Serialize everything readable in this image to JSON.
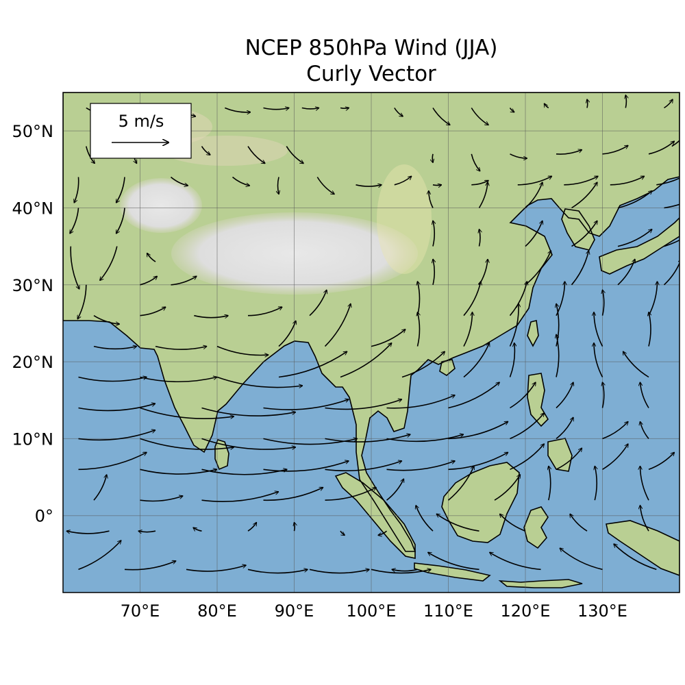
{
  "figure": {
    "title_line1": "NCEP 850hPa Wind (JJA)",
    "title_line2": "Curly Vector"
  },
  "map": {
    "projection": "PlateCarree",
    "lon_range": [
      60,
      140
    ],
    "lat_range": [
      -10,
      55
    ],
    "background": "shaded relief",
    "gridlines": true,
    "coastlines": true
  },
  "axes": {
    "x_ticks": [
      {
        "value": 70,
        "label": "70°E"
      },
      {
        "value": 80,
        "label": "80°E"
      },
      {
        "value": 90,
        "label": "90°E"
      },
      {
        "value": 100,
        "label": "100°E"
      },
      {
        "value": 110,
        "label": "110°E"
      },
      {
        "value": 120,
        "label": "120°E"
      },
      {
        "value": 130,
        "label": "130°E"
      }
    ],
    "y_ticks": [
      {
        "value": 50,
        "label": "50°N"
      },
      {
        "value": 40,
        "label": "40°N"
      },
      {
        "value": 30,
        "label": "30°N"
      },
      {
        "value": 20,
        "label": "20°N"
      },
      {
        "value": 10,
        "label": "10°N"
      },
      {
        "value": 0,
        "label": "0°"
      }
    ]
  },
  "reference_key": {
    "label": "5 m/s",
    "speed": 5,
    "placement": "upper-left"
  },
  "colors": {
    "ocean": "#7eaed3",
    "land_low": "#b9cf93",
    "land_high": "#e2d8a6",
    "plateau": "#e4e4e4",
    "vectors": "#000000",
    "gridlines": "#555555"
  },
  "chart_data": {
    "type": "curly vector",
    "title": "NCEP 850hPa Wind (JJA)",
    "subtitle": "Curly Vector",
    "xlim": [
      60,
      140
    ],
    "ylim": [
      -10,
      55
    ],
    "grid": true,
    "vectors": [
      {
        "lon": 62,
        "lat": -7,
        "u": 5,
        "v": 3.4
      },
      {
        "lon": 68,
        "lat": -7,
        "u": 6,
        "v": 1
      },
      {
        "lon": 76,
        "lat": -7,
        "u": 7,
        "v": 0.5
      },
      {
        "lon": 84,
        "lat": -7,
        "u": 7,
        "v": 0
      },
      {
        "lon": 92,
        "lat": -7,
        "u": 7,
        "v": 0
      },
      {
        "lon": 100,
        "lat": -7,
        "u": 7,
        "v": 0
      },
      {
        "lon": 106,
        "lat": -7,
        "u": -3,
        "v": 0
      },
      {
        "lon": 114,
        "lat": -7,
        "u": -6,
        "v": 2
      },
      {
        "lon": 122,
        "lat": -7,
        "u": -6,
        "v": 2
      },
      {
        "lon": 130,
        "lat": -7,
        "u": -5,
        "v": 2.5
      },
      {
        "lon": 137,
        "lat": -7,
        "u": -5,
        "v": 3
      },
      {
        "lon": 66,
        "lat": -2,
        "u": -5,
        "v": 0
      },
      {
        "lon": 72,
        "lat": -2,
        "u": -2,
        "v": 0
      },
      {
        "lon": 78,
        "lat": -2,
        "u": -1,
        "v": 0.4
      },
      {
        "lon": 84,
        "lat": -2,
        "u": 1,
        "v": 1
      },
      {
        "lon": 90,
        "lat": -2,
        "u": 0,
        "v": 1
      },
      {
        "lon": 96,
        "lat": -2,
        "u": 0.5,
        "v": -0.5
      },
      {
        "lon": 102,
        "lat": -2,
        "u": -1,
        "v": -0.5
      },
      {
        "lon": 108,
        "lat": -2,
        "u": -2,
        "v": 3
      },
      {
        "lon": 114,
        "lat": -2,
        "u": -5,
        "v": 2
      },
      {
        "lon": 120,
        "lat": -2,
        "u": -3,
        "v": 2
      },
      {
        "lon": 128,
        "lat": -2,
        "u": -2,
        "v": 2
      },
      {
        "lon": 136,
        "lat": -2,
        "u": -1,
        "v": 3
      },
      {
        "lon": 64,
        "lat": 2,
        "u": 1.5,
        "v": 3
      },
      {
        "lon": 70,
        "lat": 2,
        "u": 5,
        "v": 0.5
      },
      {
        "lon": 78,
        "lat": 2,
        "u": 9,
        "v": 1
      },
      {
        "lon": 86,
        "lat": 2,
        "u": 7,
        "v": 1.5
      },
      {
        "lon": 94,
        "lat": 2,
        "u": 6,
        "v": 1.5
      },
      {
        "lon": 102,
        "lat": 2,
        "u": 2,
        "v": 2.5
      },
      {
        "lon": 110,
        "lat": 2,
        "u": 3,
        "v": 4
      },
      {
        "lon": 116,
        "lat": 2,
        "u": 3,
        "v": 3
      },
      {
        "lon": 123,
        "lat": 2,
        "u": 0,
        "v": 4
      },
      {
        "lon": 129,
        "lat": 2,
        "u": 0,
        "v": 4
      },
      {
        "lon": 136,
        "lat": 2,
        "u": -1,
        "v": 4
      },
      {
        "lon": 62,
        "lat": 6,
        "u": 8,
        "v": 2
      },
      {
        "lon": 70,
        "lat": 6,
        "u": 9,
        "v": 0
      },
      {
        "lon": 78,
        "lat": 6,
        "u": 10,
        "v": 0
      },
      {
        "lon": 86,
        "lat": 6,
        "u": 10,
        "v": 1
      },
      {
        "lon": 94,
        "lat": 6,
        "u": 9,
        "v": 1
      },
      {
        "lon": 102,
        "lat": 6,
        "u": 8,
        "v": 1
      },
      {
        "lon": 110,
        "lat": 6,
        "u": 7,
        "v": 2
      },
      {
        "lon": 118,
        "lat": 6,
        "u": 4,
        "v": 3
      },
      {
        "lon": 124,
        "lat": 6,
        "u": 3,
        "v": 2.5
      },
      {
        "lon": 130,
        "lat": 6,
        "u": 3,
        "v": 3
      },
      {
        "lon": 136,
        "lat": 6,
        "u": 3,
        "v": 2
      },
      {
        "lon": 62,
        "lat": 10,
        "u": 9,
        "v": 1
      },
      {
        "lon": 70,
        "lat": 10,
        "u": 11,
        "v": -1
      },
      {
        "lon": 78,
        "lat": 10,
        "u": 11,
        "v": -1
      },
      {
        "lon": 86,
        "lat": 10,
        "u": 11,
        "v": 0
      },
      {
        "lon": 94,
        "lat": 10,
        "u": 10,
        "v": 0.5
      },
      {
        "lon": 102,
        "lat": 10,
        "u": 9,
        "v": 0.5
      },
      {
        "lon": 110,
        "lat": 10,
        "u": 7,
        "v": 2
      },
      {
        "lon": 118,
        "lat": 10,
        "u": 4,
        "v": 3
      },
      {
        "lon": 124,
        "lat": 10,
        "u": 2,
        "v": 2.5
      },
      {
        "lon": 130,
        "lat": 10,
        "u": 3,
        "v": 2
      },
      {
        "lon": 136,
        "lat": 10,
        "u": -1,
        "v": 2
      },
      {
        "lon": 62,
        "lat": 14,
        "u": 9,
        "v": 0.5
      },
      {
        "lon": 70,
        "lat": 14,
        "u": 11,
        "v": -1
      },
      {
        "lon": 78,
        "lat": 14,
        "u": 11,
        "v": -0.5
      },
      {
        "lon": 86,
        "lat": 14,
        "u": 10,
        "v": 1
      },
      {
        "lon": 94,
        "lat": 14,
        "u": 9,
        "v": 1
      },
      {
        "lon": 102,
        "lat": 14,
        "u": 8,
        "v": 1.5
      },
      {
        "lon": 110,
        "lat": 14,
        "u": 6,
        "v": 3
      },
      {
        "lon": 118,
        "lat": 14,
        "u": 3,
        "v": 3
      },
      {
        "lon": 124,
        "lat": 14,
        "u": 2,
        "v": 3
      },
      {
        "lon": 130,
        "lat": 14,
        "u": 0,
        "v": 3
      },
      {
        "lon": 136,
        "lat": 14,
        "u": -1,
        "v": 3
      },
      {
        "lon": 62,
        "lat": 18,
        "u": 8,
        "v": 0
      },
      {
        "lon": 70,
        "lat": 18,
        "u": 9,
        "v": 0
      },
      {
        "lon": 80,
        "lat": 18,
        "u": 10,
        "v": -1
      },
      {
        "lon": 88,
        "lat": 18,
        "u": 8,
        "v": 3
      },
      {
        "lon": 96,
        "lat": 18,
        "u": 6,
        "v": 4
      },
      {
        "lon": 104,
        "lat": 18,
        "u": 5,
        "v": 3
      },
      {
        "lon": 112,
        "lat": 18,
        "u": 3,
        "v": 4
      },
      {
        "lon": 118,
        "lat": 18,
        "u": 0.5,
        "v": 4
      },
      {
        "lon": 124,
        "lat": 18,
        "u": 0,
        "v": 5
      },
      {
        "lon": 130,
        "lat": 18,
        "u": -1,
        "v": 4
      },
      {
        "lon": 136,
        "lat": 18,
        "u": -3,
        "v": 3
      },
      {
        "lon": 64,
        "lat": 22,
        "u": 5,
        "v": 0
      },
      {
        "lon": 72,
        "lat": 22,
        "u": 6,
        "v": 0
      },
      {
        "lon": 80,
        "lat": 22,
        "u": 6,
        "v": -1
      },
      {
        "lon": 88,
        "lat": 22,
        "u": 2,
        "v": 3
      },
      {
        "lon": 94,
        "lat": 22,
        "u": 3,
        "v": 5
      },
      {
        "lon": 100,
        "lat": 22,
        "u": 4,
        "v": 2
      },
      {
        "lon": 106,
        "lat": 22,
        "u": 0,
        "v": 4
      },
      {
        "lon": 112,
        "lat": 22,
        "u": 1,
        "v": 4
      },
      {
        "lon": 118,
        "lat": 22,
        "u": 1,
        "v": 5
      },
      {
        "lon": 124,
        "lat": 22,
        "u": 0,
        "v": 5
      },
      {
        "lon": 130,
        "lat": 22,
        "u": -1,
        "v": 4
      },
      {
        "lon": 136,
        "lat": 22,
        "u": 0,
        "v": 4
      },
      {
        "lon": 64,
        "lat": 26,
        "u": 3,
        "v": -1
      },
      {
        "lon": 70,
        "lat": 26,
        "u": 3,
        "v": 1
      },
      {
        "lon": 77,
        "lat": 26,
        "u": 4,
        "v": 0
      },
      {
        "lon": 84,
        "lat": 26,
        "u": 4,
        "v": 1
      },
      {
        "lon": 92,
        "lat": 26,
        "u": 2,
        "v": 3
      },
      {
        "lon": 106,
        "lat": 26,
        "u": 0,
        "v": 4
      },
      {
        "lon": 112,
        "lat": 26,
        "u": 2,
        "v": 4
      },
      {
        "lon": 118,
        "lat": 26,
        "u": 2,
        "v": 4
      },
      {
        "lon": 124,
        "lat": 26,
        "u": 1,
        "v": 4
      },
      {
        "lon": 130,
        "lat": 26,
        "u": 0,
        "v": 3
      },
      {
        "lon": 136,
        "lat": 26,
        "u": 1,
        "v": 4
      },
      {
        "lon": 63,
        "lat": 30,
        "u": -1,
        "v": -4
      },
      {
        "lon": 70,
        "lat": 30,
        "u": 2,
        "v": 1
      },
      {
        "lon": 74,
        "lat": 30,
        "u": 3,
        "v": 1
      },
      {
        "lon": 108,
        "lat": 30,
        "u": 0,
        "v": 3
      },
      {
        "lon": 114,
        "lat": 30,
        "u": 1,
        "v": 3
      },
      {
        "lon": 120,
        "lat": 30,
        "u": 3,
        "v": 4
      },
      {
        "lon": 126,
        "lat": 30,
        "u": 2,
        "v": 4
      },
      {
        "lon": 132,
        "lat": 30,
        "u": 2,
        "v": 3
      },
      {
        "lon": 138,
        "lat": 30,
        "u": 2,
        "v": 3
      },
      {
        "lon": 61,
        "lat": 35,
        "u": 1,
        "v": -5
      },
      {
        "lon": 67,
        "lat": 35,
        "u": -2,
        "v": -4
      },
      {
        "lon": 72,
        "lat": 33,
        "u": -1,
        "v": 1
      },
      {
        "lon": 108,
        "lat": 35,
        "u": 0,
        "v": 3
      },
      {
        "lon": 114,
        "lat": 35,
        "u": 0,
        "v": 2
      },
      {
        "lon": 120,
        "lat": 35,
        "u": 2,
        "v": 3
      },
      {
        "lon": 126,
        "lat": 35,
        "u": 3,
        "v": 3
      },
      {
        "lon": 132,
        "lat": 35,
        "u": 4,
        "v": 2
      },
      {
        "lon": 138,
        "lat": 35,
        "u": 5,
        "v": 3
      },
      {
        "lon": 62,
        "lat": 40,
        "u": -1,
        "v": -3
      },
      {
        "lon": 68,
        "lat": 40,
        "u": -1,
        "v": -3
      },
      {
        "lon": 108,
        "lat": 40,
        "u": -0.5,
        "v": 2
      },
      {
        "lon": 114,
        "lat": 40,
        "u": 1,
        "v": 3
      },
      {
        "lon": 120,
        "lat": 40,
        "u": 2,
        "v": 3
      },
      {
        "lon": 126,
        "lat": 40,
        "u": 3,
        "v": 3
      },
      {
        "lon": 132,
        "lat": 40,
        "u": 4,
        "v": 2
      },
      {
        "lon": 138,
        "lat": 40,
        "u": 5,
        "v": 2
      },
      {
        "lon": 62,
        "lat": 44,
        "u": -0.5,
        "v": -3
      },
      {
        "lon": 68,
        "lat": 44,
        "u": -1,
        "v": -3
      },
      {
        "lon": 74,
        "lat": 44,
        "u": 2,
        "v": -1
      },
      {
        "lon": 82,
        "lat": 44,
        "u": 2,
        "v": -1
      },
      {
        "lon": 88,
        "lat": 44,
        "u": 0,
        "v": -2
      },
      {
        "lon": 93,
        "lat": 44,
        "u": 2,
        "v": -2
      },
      {
        "lon": 98,
        "lat": 43,
        "u": 3,
        "v": 0
      },
      {
        "lon": 103,
        "lat": 43,
        "u": 2,
        "v": 1
      },
      {
        "lon": 108,
        "lat": 43,
        "u": 1,
        "v": 0
      },
      {
        "lon": 113,
        "lat": 43,
        "u": 2,
        "v": 0.5
      },
      {
        "lon": 119,
        "lat": 43,
        "u": 4,
        "v": 1
      },
      {
        "lon": 125,
        "lat": 43,
        "u": 4,
        "v": 1
      },
      {
        "lon": 131,
        "lat": 43,
        "u": 4,
        "v": 1
      },
      {
        "lon": 137,
        "lat": 43,
        "u": 4,
        "v": 1.5
      },
      {
        "lon": 63,
        "lat": 48,
        "u": 1,
        "v": -2
      },
      {
        "lon": 69,
        "lat": 48,
        "u": 0.5,
        "v": -2
      },
      {
        "lon": 78,
        "lat": 48,
        "u": 1,
        "v": -1
      },
      {
        "lon": 84,
        "lat": 48,
        "u": 2,
        "v": -2
      },
      {
        "lon": 89,
        "lat": 48,
        "u": 2,
        "v": -2
      },
      {
        "lon": 108,
        "lat": 47,
        "u": 0,
        "v": -1
      },
      {
        "lon": 113,
        "lat": 47,
        "u": 1,
        "v": -2
      },
      {
        "lon": 118,
        "lat": 47,
        "u": 2,
        "v": -0.5
      },
      {
        "lon": 124,
        "lat": 47,
        "u": 3,
        "v": 0.5
      },
      {
        "lon": 130,
        "lat": 47,
        "u": 3,
        "v": 1
      },
      {
        "lon": 136,
        "lat": 47,
        "u": 3,
        "v": 1.5
      },
      {
        "lon": 139,
        "lat": 48,
        "u": 2,
        "v": 2
      },
      {
        "lon": 63,
        "lat": 53,
        "u": 3,
        "v": -1
      },
      {
        "lon": 69,
        "lat": 53,
        "u": 2,
        "v": -1
      },
      {
        "lon": 75,
        "lat": 53,
        "u": 2,
        "v": -1
      },
      {
        "lon": 81,
        "lat": 53,
        "u": 3,
        "v": -0.5
      },
      {
        "lon": 86,
        "lat": 53,
        "u": 3,
        "v": 0
      },
      {
        "lon": 91,
        "lat": 53,
        "u": 2,
        "v": 0
      },
      {
        "lon": 96,
        "lat": 53,
        "u": 1,
        "v": 0
      },
      {
        "lon": 103,
        "lat": 53,
        "u": 1,
        "v": -1
      },
      {
        "lon": 108,
        "lat": 53,
        "u": 2,
        "v": -2
      },
      {
        "lon": 113,
        "lat": 53,
        "u": 2,
        "v": -2
      },
      {
        "lon": 118,
        "lat": 53,
        "u": 0.5,
        "v": -0.5
      },
      {
        "lon": 123,
        "lat": 53,
        "u": -0.5,
        "v": 0.5
      },
      {
        "lon": 128,
        "lat": 53,
        "u": 0,
        "v": 1
      },
      {
        "lon": 133,
        "lat": 53,
        "u": 0,
        "v": 1.5
      },
      {
        "lon": 138,
        "lat": 53,
        "u": 1,
        "v": 1
      }
    ]
  }
}
